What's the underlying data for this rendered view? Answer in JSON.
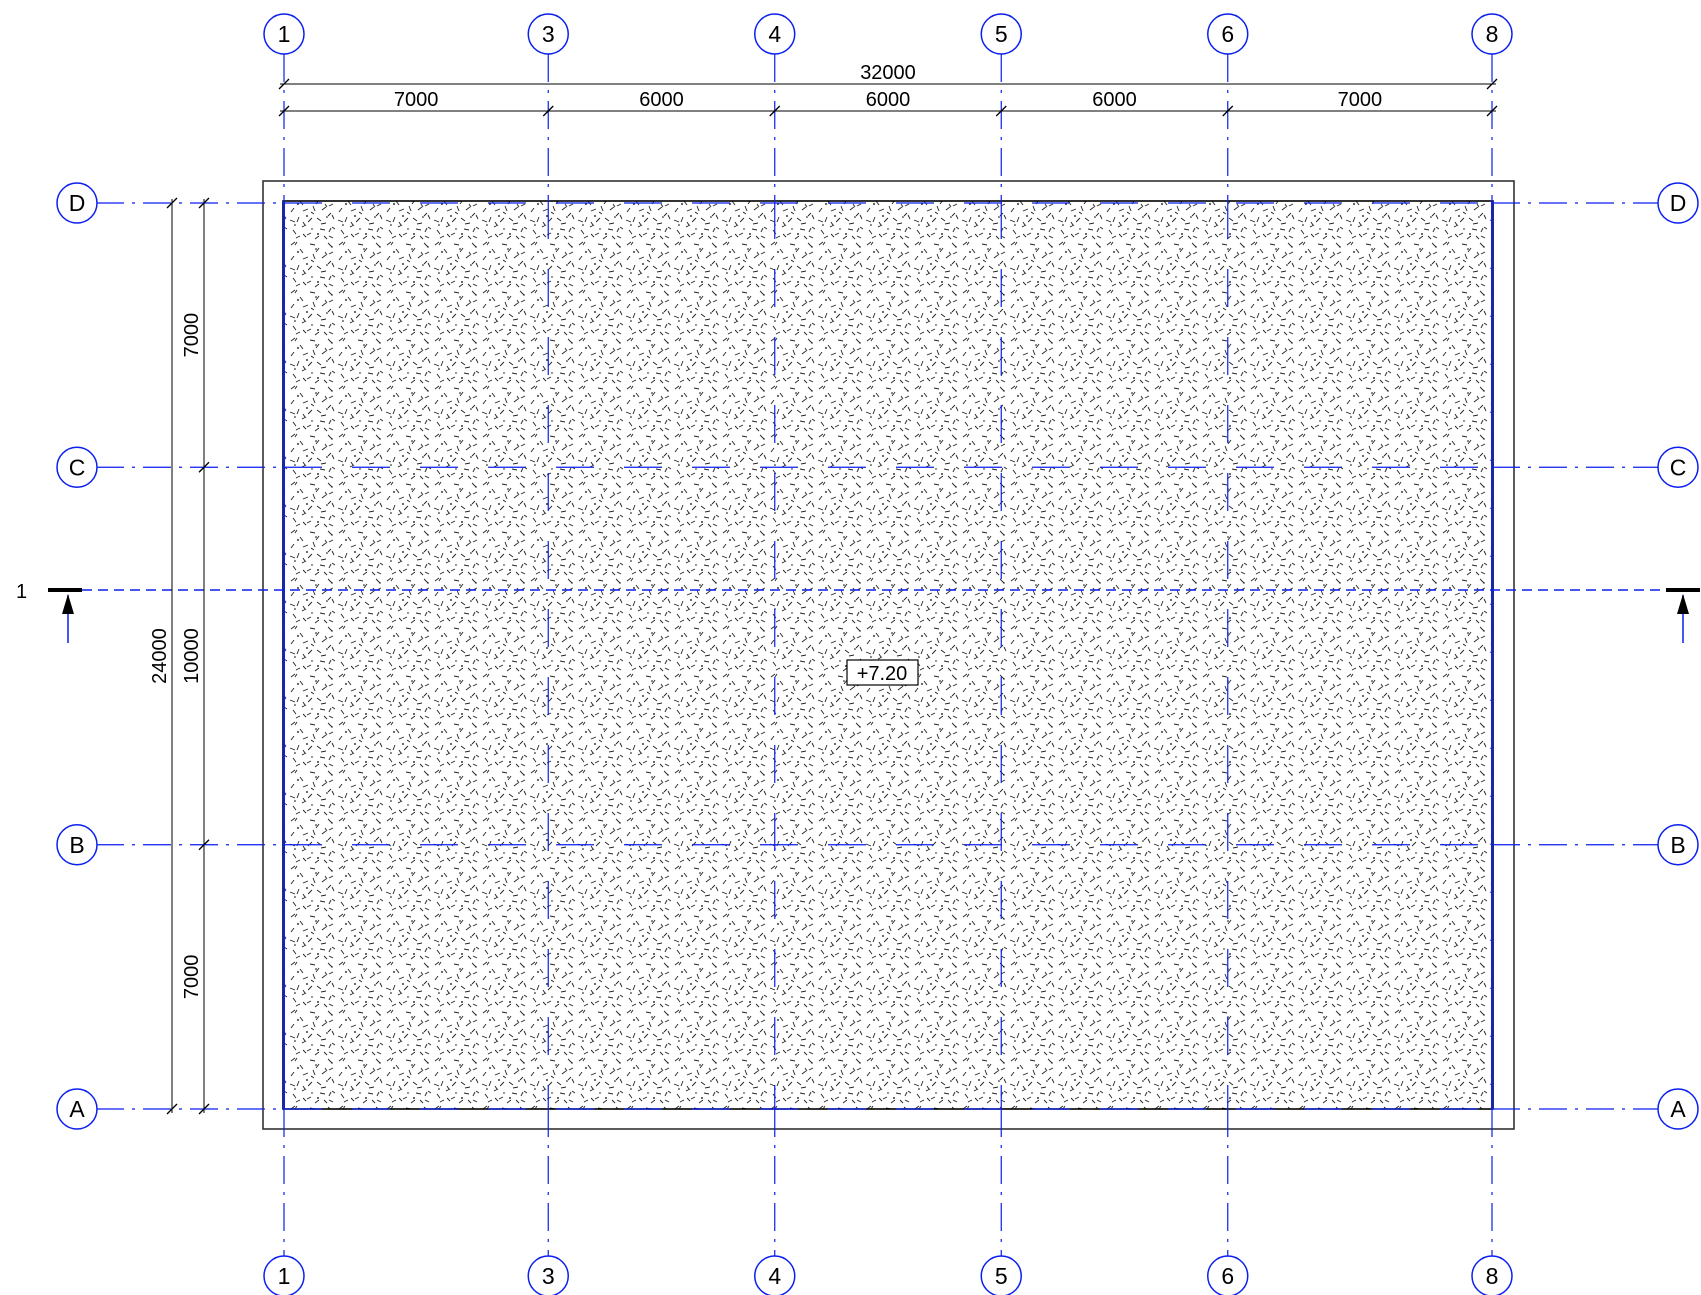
{
  "drawing": {
    "overall_width_label": "32000",
    "overall_height_label": "24000",
    "elevation_label": "+7.20",
    "section_mark_label": "1",
    "colors": {
      "grid": "#0b1ff0",
      "lines": "#000000",
      "background": "#ffffff"
    }
  },
  "grid_columns": [
    {
      "label": "1",
      "offset_mm": 0
    },
    {
      "label": "3",
      "offset_mm": 7000
    },
    {
      "label": "4",
      "offset_mm": 13000
    },
    {
      "label": "5",
      "offset_mm": 19000
    },
    {
      "label": "6",
      "offset_mm": 25000
    },
    {
      "label": "8",
      "offset_mm": 32000
    }
  ],
  "grid_rows": [
    {
      "label": "D",
      "offset_mm": 24000
    },
    {
      "label": "C",
      "offset_mm": 17000
    },
    {
      "label": "B",
      "offset_mm": 7000
    },
    {
      "label": "A",
      "offset_mm": 0
    }
  ],
  "column_spacings": [
    "7000",
    "6000",
    "6000",
    "6000",
    "7000"
  ],
  "row_spacings": [
    "7000",
    "10000",
    "7000"
  ]
}
